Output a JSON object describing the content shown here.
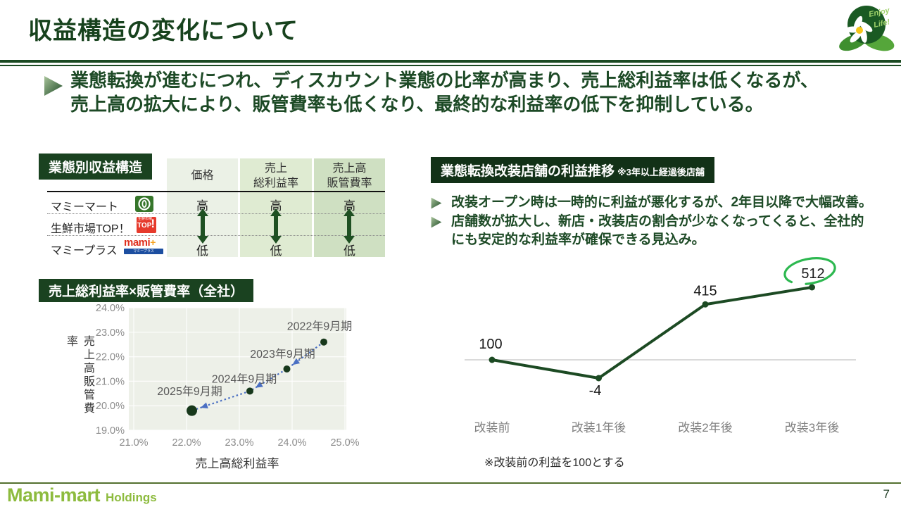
{
  "slide": {
    "title": "収益構造の変化について",
    "page_number": "7",
    "lead_lines": [
      "業態転換が進むにつれ、ディスカウント業態の比率が高まり、売上総利益率は低くなるが、",
      "売上高の拡大により、販管費率も低くなり、最終的な利益率の低下を抑制している。"
    ]
  },
  "corner_logo": {
    "top_line": "Enjoy",
    "bottom_line": "Life!"
  },
  "income_table": {
    "badge": "業態別収益構造",
    "columns": [
      {
        "lines": [
          "価格"
        ],
        "top": "高",
        "bottom": "低"
      },
      {
        "lines": [
          "売上",
          "総利益率"
        ],
        "top": "高",
        "bottom": "低"
      },
      {
        "lines": [
          "売上高",
          "販管費率"
        ],
        "top": "高",
        "bottom": "低"
      }
    ],
    "rows": [
      {
        "name": "マミーマート"
      },
      {
        "name": "生鮮市場TOP！"
      },
      {
        "name": "マミープラス"
      }
    ],
    "logos": {
      "top_sub": "生鮮市場",
      "top_main": "TOP",
      "top_bang": "!",
      "mami_main": "mami",
      "mami_plus": "+",
      "mami_sub": "マミープラス"
    }
  },
  "right_panel": {
    "badge_title": "業態転換改装店舗の利益推移",
    "badge_note": "※3年以上経過後店舗",
    "bullets": [
      "改装オープン時は一時的に利益が悪化するが、2年目以降で大幅改善。",
      "店舗数が拡大し、新店・改装店の割合が少なくなってくると、全社的にも安定的な利益率が確保できる見込み。"
    ]
  },
  "footer": {
    "brand": "Mami-mart",
    "brand_suffix": "Holdings"
  },
  "chart_data": [
    {
      "type": "scatter",
      "title": "売上総利益率×販管費率（全社）",
      "xlabel": "売上高総利益率",
      "ylabel": "売上高販管費率",
      "xlim": [
        21.0,
        25.0
      ],
      "ylim": [
        19.0,
        24.0
      ],
      "x_tick_labels": [
        "21.0%",
        "22.0%",
        "23.0%",
        "24.0%",
        "25.0%"
      ],
      "y_tick_labels": [
        "19.0%",
        "20.0%",
        "21.0%",
        "22.0%",
        "23.0%",
        "24.0%"
      ],
      "grid": true,
      "legend": false,
      "plot_bg": "#edf0e8",
      "point_color": "#17381b",
      "trend_arrow_color": "#4a6fc3",
      "label_color": "#595959",
      "points": [
        {
          "label": "2022年9月期",
          "x": 24.6,
          "y": 22.6
        },
        {
          "label": "2023年9月期",
          "x": 23.9,
          "y": 21.5
        },
        {
          "label": "2024年9月期",
          "x": 23.2,
          "y": 20.6
        },
        {
          "label": "2025年9月期",
          "x": 22.1,
          "y": 19.8
        }
      ]
    },
    {
      "type": "line",
      "categories": [
        "改装前",
        "改装1年後",
        "改装2年後",
        "改装3年後"
      ],
      "values": [
        100,
        -4,
        415,
        512
      ],
      "baseline": 100,
      "note": "※改装前の利益を100とする",
      "line_color": "#1c4a23",
      "value_label_color": "#1a1a1a",
      "category_label_color": "#808080",
      "highlight": {
        "index": 3,
        "circle_color": "#2db850"
      }
    }
  ]
}
